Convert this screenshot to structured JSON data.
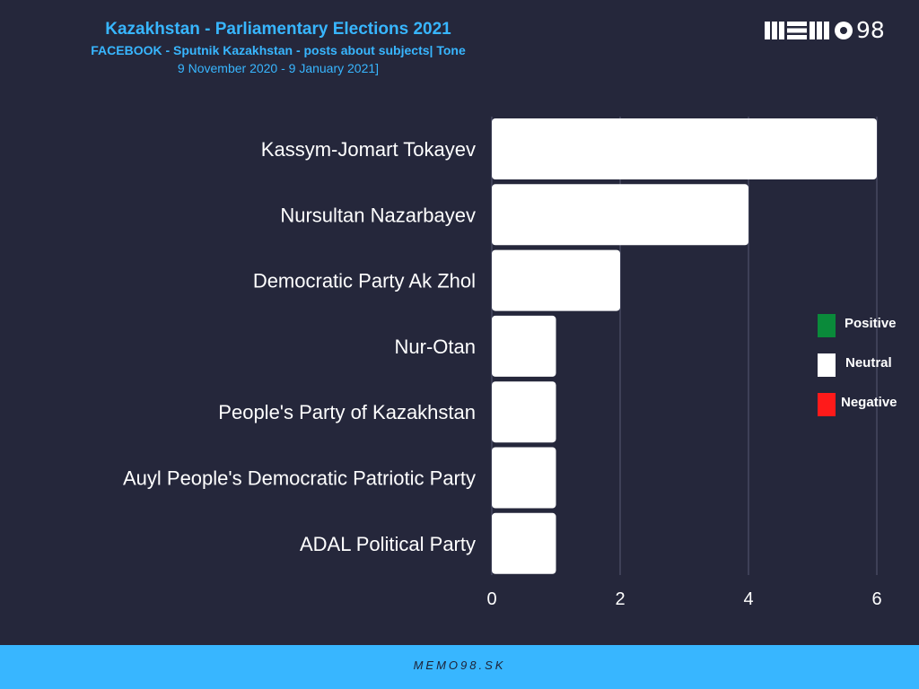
{
  "header": {
    "title": "Kazakhstan - Parliamentary Elections 2021",
    "subtitle": "FACEBOOK - Sputnik Kazakhstan - posts about subjects| Tone",
    "date_range": "9 November 2020 - 9 January 2021]"
  },
  "logo": {
    "text": "98"
  },
  "colors": {
    "background": "#25273b",
    "accent": "#38b6ff",
    "positive": "#0a8a3a",
    "neutral": "#ffffff",
    "negative": "#ff1a1a"
  },
  "chart_data": {
    "type": "bar",
    "orientation": "horizontal",
    "stacked": true,
    "categories": [
      "Kassym-Jomart Tokayev",
      "Nursultan Nazarbayev",
      "Democratic Party Ak Zhol",
      "Nur-Otan",
      "People's Party of Kazakhstan",
      "Auyl People's Democratic Patriotic Party",
      "ADAL Political Party"
    ],
    "series": [
      {
        "name": "Positive",
        "color": "#0a8a3a",
        "values": [
          0,
          0,
          0,
          0,
          0,
          0,
          0
        ]
      },
      {
        "name": "Neutral",
        "color": "#ffffff",
        "values": [
          6,
          4,
          2,
          1,
          1,
          1,
          1
        ]
      },
      {
        "name": "Negative",
        "color": "#ff1a1a",
        "values": [
          0,
          0,
          0,
          0,
          0,
          0,
          0
        ]
      }
    ],
    "xlim": [
      0,
      6
    ],
    "xticks": [
      0,
      2,
      4,
      6
    ],
    "grid": true,
    "legend_position": "right"
  },
  "legend": {
    "items": [
      {
        "label": "Positive",
        "color": "#0a8a3a"
      },
      {
        "label": "Neutral",
        "color": "#ffffff"
      },
      {
        "label": "Negative",
        "color": "#ff1a1a"
      }
    ]
  },
  "footer": {
    "text": "MEMO98.SK"
  }
}
